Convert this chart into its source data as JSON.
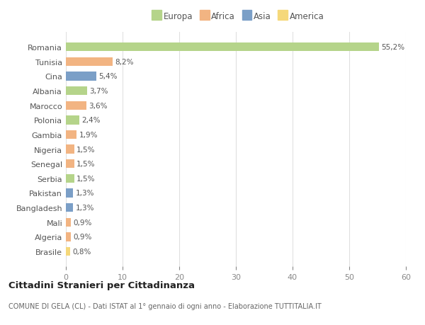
{
  "countries": [
    "Romania",
    "Tunisia",
    "Cina",
    "Albania",
    "Marocco",
    "Polonia",
    "Gambia",
    "Nigeria",
    "Senegal",
    "Serbia",
    "Pakistan",
    "Bangladesh",
    "Mali",
    "Algeria",
    "Brasile"
  ],
  "values": [
    55.2,
    8.2,
    5.4,
    3.7,
    3.6,
    2.4,
    1.9,
    1.5,
    1.5,
    1.5,
    1.3,
    1.3,
    0.9,
    0.9,
    0.8
  ],
  "labels": [
    "55,2%",
    "8,2%",
    "5,4%",
    "3,7%",
    "3,6%",
    "2,4%",
    "1,9%",
    "1,5%",
    "1,5%",
    "1,5%",
    "1,3%",
    "1,3%",
    "0,9%",
    "0,9%",
    "0,8%"
  ],
  "continents": [
    "Europa",
    "Africa",
    "Asia",
    "Europa",
    "Africa",
    "Europa",
    "Africa",
    "Africa",
    "Africa",
    "Europa",
    "Asia",
    "Asia",
    "Africa",
    "Africa",
    "America"
  ],
  "colors": {
    "Europa": "#b5d48a",
    "Africa": "#f2b482",
    "Asia": "#7b9fc7",
    "America": "#f5d87a"
  },
  "background_color": "#ffffff",
  "grid_color": "#e0e0e0",
  "title": "Cittadini Stranieri per Cittadinanza",
  "subtitle": "COMUNE DI GELA (CL) - Dati ISTAT al 1° gennaio di ogni anno - Elaborazione TUTTITALIA.IT",
  "xlim": [
    0,
    60
  ],
  "xticks": [
    0,
    10,
    20,
    30,
    40,
    50,
    60
  ],
  "legend_order": [
    "Europa",
    "Africa",
    "Asia",
    "America"
  ]
}
